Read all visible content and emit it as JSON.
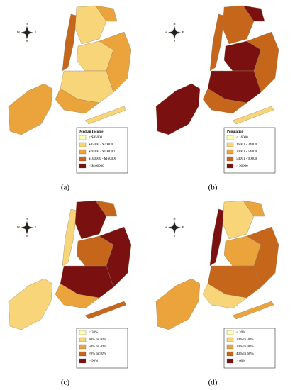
{
  "compass": {
    "north": "N",
    "south": "S",
    "east": "E",
    "west": "W"
  },
  "panels": [
    {
      "label": "(a)",
      "legend": {
        "title": "Median Income",
        "items": [
          "< $45000",
          "$45000 - $70000",
          "$70000 - $100000",
          "$100000 - $160000",
          "> $160000"
        ]
      }
    },
    {
      "label": "(b)",
      "legend": {
        "title": "Population",
        "items": [
          "< 16000",
          "16001 - 34000",
          "34001 - 54000",
          "54001 - 90000",
          "> 90000"
        ]
      }
    },
    {
      "label": "(c)",
      "legend": {
        "items": [
          "< 30%",
          "30% to 50%",
          "50% to 70%",
          "70% to 90%",
          "> 90%"
        ]
      }
    },
    {
      "label": "(d)",
      "legend": {
        "items": [
          "< 20%",
          "20% to 30%",
          "30% to 40%",
          "40% to 60%",
          "> 60%"
        ]
      }
    }
  ]
}
